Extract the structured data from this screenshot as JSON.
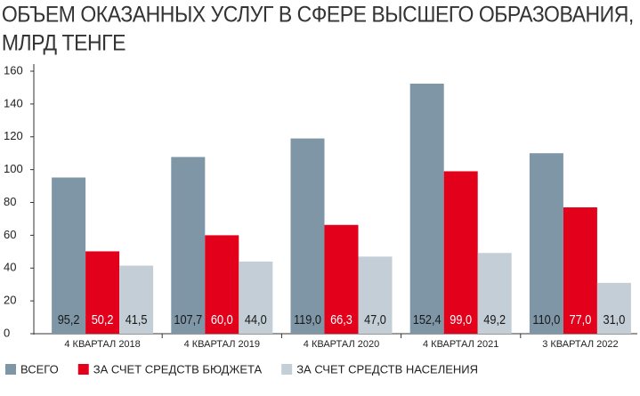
{
  "chart_data": {
    "type": "bar",
    "title": [
      "ОБЪЕМ ОКАЗАННЫХ УСЛУГ В СФЕРЕ ВЫСШЕГО ОБРАЗОВАНИЯ,",
      "МЛРД ТЕНГЕ"
    ],
    "categories": [
      "4 КВАРТАЛ 2018",
      "4 КВАРТАЛ 2019",
      "4 КВАРТАЛ 2020",
      "4 КВАРТАЛ 2021",
      "3 КВАРТАЛ 2022"
    ],
    "series": [
      {
        "name": "ВСЕГО",
        "color": "#7f96a6",
        "values": [
          95.2,
          107.7,
          119.0,
          152.4,
          110.0
        ],
        "value_labels": [
          "95,2",
          "107,7",
          "119,0",
          "152,4",
          "110,0"
        ]
      },
      {
        "name": "ЗА СЧЕТ СРЕДСТВ БЮДЖЕТА",
        "color": "#e2001a",
        "values": [
          50.2,
          60.0,
          66.3,
          99.0,
          77.0
        ],
        "value_labels": [
          "50,2",
          "60,0",
          "66,3",
          "99,0",
          "77,0"
        ]
      },
      {
        "name": "ЗА СЧЕТ СРЕДСТВ НАСЕЛЕНИЯ",
        "color": "#c3ced6",
        "values": [
          41.5,
          44.0,
          47.0,
          49.2,
          31.0
        ],
        "value_labels": [
          "41,5",
          "44,0",
          "47,0",
          "49,2",
          "31,0"
        ]
      }
    ],
    "ylim": [
      0,
      160
    ],
    "yticks": [
      0,
      20,
      40,
      60,
      80,
      100,
      120,
      140,
      160
    ],
    "grid": false
  }
}
